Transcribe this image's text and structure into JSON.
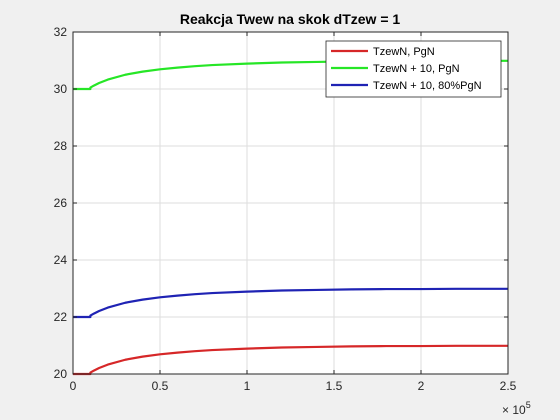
{
  "chart_data": {
    "type": "line",
    "title": "Reakcja Twew na skok dTzew = 1",
    "xlabel": "",
    "ylabel": "",
    "xlim": [
      0,
      250000
    ],
    "ylim": [
      20,
      32
    ],
    "x_ticks": [
      0,
      50000,
      100000,
      150000,
      200000,
      250000
    ],
    "x_tick_labels": [
      "0",
      "0.5",
      "1",
      "1.5",
      "2",
      "2.5"
    ],
    "x_exponent_base": "× 10",
    "x_exponent_power": "5",
    "y_ticks": [
      20,
      22,
      24,
      26,
      28,
      30,
      32
    ],
    "y_tick_labels": [
      "20",
      "22",
      "24",
      "26",
      "28",
      "30",
      "32"
    ],
    "grid": true,
    "legend_position": "top-right",
    "step_time": 10000,
    "x": [
      0,
      9990,
      10000,
      12000,
      15000,
      20000,
      30000,
      40000,
      50000,
      60000,
      70000,
      80000,
      100000,
      120000,
      140000,
      160000,
      180000,
      200000,
      220000,
      250000
    ],
    "series": [
      {
        "name": "TzewN, PgN",
        "color": "#d62728",
        "values": [
          20.0,
          20.0,
          20.05,
          20.12,
          20.21,
          20.33,
          20.5,
          20.61,
          20.69,
          20.75,
          20.8,
          20.84,
          20.89,
          20.93,
          20.95,
          20.97,
          20.98,
          20.98,
          20.99,
          20.99
        ]
      },
      {
        "name": "TzewN + 10, PgN",
        "color": "#26e626",
        "values": [
          30.0,
          30.0,
          30.05,
          30.12,
          30.21,
          30.33,
          30.5,
          30.61,
          30.69,
          30.75,
          30.8,
          30.84,
          30.89,
          30.93,
          30.95,
          30.97,
          30.98,
          30.98,
          30.99,
          30.99
        ]
      },
      {
        "name": "TzewN + 10, 80%PgN",
        "color": "#1f23b4",
        "values": [
          22.0,
          22.0,
          22.05,
          22.12,
          22.21,
          22.33,
          22.5,
          22.61,
          22.69,
          22.75,
          22.8,
          22.84,
          22.89,
          22.93,
          22.95,
          22.97,
          22.98,
          22.98,
          22.99,
          22.99
        ]
      }
    ]
  }
}
